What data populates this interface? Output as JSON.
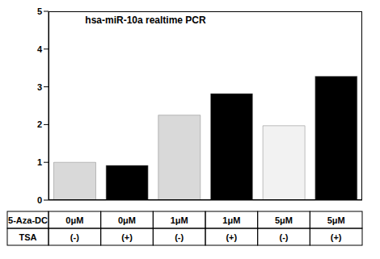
{
  "chart_data": {
    "type": "bar",
    "title": "hsa-miR-10a realtime PCR",
    "category_rows": [
      "5-Aza-DC",
      "TSA"
    ],
    "categories": [
      [
        "0μM",
        "(-)"
      ],
      [
        "0μM",
        "(+)"
      ],
      [
        "1μM",
        "(-)"
      ],
      [
        "1μM",
        "(+)"
      ],
      [
        "5μM",
        "(-)"
      ],
      [
        "5μM",
        "(+)"
      ]
    ],
    "values": [
      1.0,
      0.92,
      2.25,
      2.82,
      1.97,
      3.28
    ],
    "colors": [
      "#d9d9d9",
      "#000000",
      "#d9d9d9",
      "#000000",
      "#f2f2f2",
      "#000000"
    ],
    "ylim": [
      0,
      5
    ],
    "yticks": [
      0,
      1,
      2,
      3,
      4,
      5
    ],
    "grid": false
  }
}
